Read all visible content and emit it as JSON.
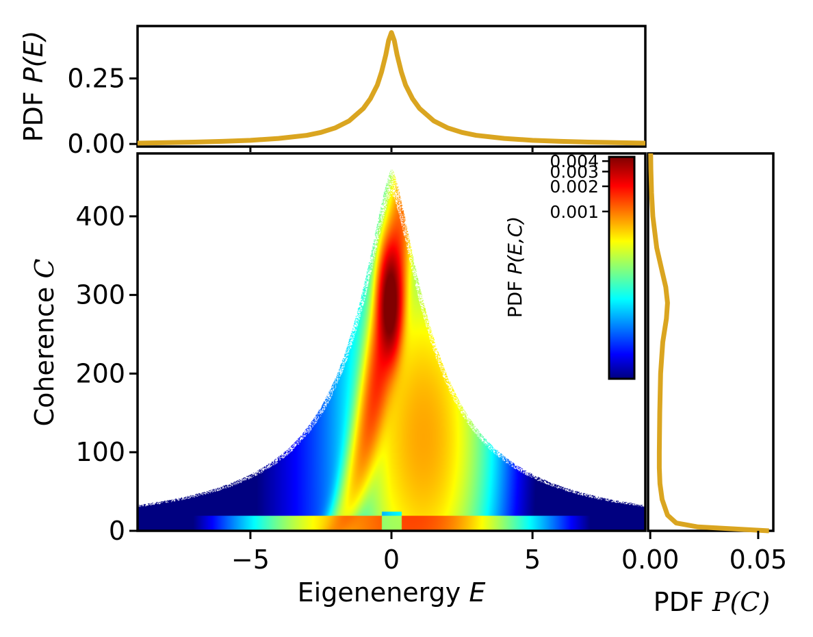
{
  "colors": {
    "curve": "#DAA520",
    "axis": "#000000",
    "background": "#ffffff"
  },
  "chart_data": [
    {
      "id": "top",
      "type": "line",
      "ylabel_prefix": "PDF ",
      "ylabel_var": "P(E)",
      "xlim": [
        -9,
        9
      ],
      "ylim": [
        -0.01,
        0.45
      ],
      "yticks": [
        0.0,
        0.25
      ],
      "ytick_labels": [
        "0.00",
        "0.25"
      ],
      "xticks": [
        -5,
        0,
        5
      ],
      "series": [
        {
          "name": "P(E)",
          "x": [
            -9,
            -8,
            -7,
            -6,
            -5,
            -4,
            -3,
            -2.5,
            -2,
            -1.5,
            -1,
            -0.75,
            -0.5,
            -0.35,
            -0.2,
            -0.1,
            0,
            0.1,
            0.2,
            0.35,
            0.5,
            0.75,
            1,
            1.5,
            2,
            2.5,
            3,
            4,
            5,
            6,
            7,
            8,
            9
          ],
          "y": [
            0.003,
            0.005,
            0.007,
            0.01,
            0.014,
            0.021,
            0.033,
            0.044,
            0.061,
            0.088,
            0.135,
            0.172,
            0.225,
            0.275,
            0.34,
            0.395,
            0.425,
            0.395,
            0.34,
            0.275,
            0.225,
            0.172,
            0.135,
            0.088,
            0.061,
            0.044,
            0.033,
            0.021,
            0.014,
            0.01,
            0.007,
            0.005,
            0.003
          ]
        }
      ]
    },
    {
      "id": "main",
      "type": "heatmap",
      "xlabel_text": "Eigenenergy ",
      "xlabel_var": "E",
      "ylabel_text": "Coherence ",
      "ylabel_var": "C",
      "xlim": [
        -9,
        9
      ],
      "ylim": [
        0,
        480
      ],
      "xticks": [
        -5,
        0,
        5
      ],
      "xtick_labels": [
        "−5",
        "0",
        "5"
      ],
      "yticks": [
        0,
        100,
        200,
        300,
        400
      ],
      "ytick_labels": [
        "0",
        "100",
        "200",
        "300",
        "400"
      ],
      "colorbar": {
        "title_prefix": "PDF ",
        "title_var": "P(E,C)",
        "colormap": "jet",
        "scale": "log",
        "range": [
          1e-05,
          0.0045
        ],
        "ticks": [
          0.001,
          0.002,
          0.003,
          0.004
        ],
        "tick_labels": [
          "0.001",
          "0.002",
          "0.003",
          "0.004"
        ]
      },
      "density_model": {
        "peak": {
          "E": -0.05,
          "C": 290,
          "value": 0.0044
        },
        "ridge": "bright ridge from (E=-2, C=5) through (E=0, C=300) to (E=0.3, C=450)",
        "envelope": "C_max(E) ~ 460 / (1 + 0.48 |E|^1.5)"
      }
    },
    {
      "id": "right",
      "type": "line",
      "xlabel_prefix": "PDF ",
      "xlabel_var": "P(C)",
      "xlim": [
        -0.001,
        0.057
      ],
      "ylim": [
        0,
        480
      ],
      "xticks": [
        0.0,
        0.05
      ],
      "xtick_labels": [
        "0.00",
        "0.05"
      ],
      "series": [
        {
          "name": "P(C)",
          "C": [
            0,
            5,
            10,
            20,
            40,
            60,
            80,
            100,
            150,
            200,
            240,
            270,
            290,
            310,
            330,
            360,
            400,
            430,
            460,
            480
          ],
          "p": [
            0.055,
            0.022,
            0.012,
            0.008,
            0.0055,
            0.0045,
            0.0042,
            0.0042,
            0.0044,
            0.0048,
            0.0058,
            0.0075,
            0.008,
            0.0072,
            0.0055,
            0.003,
            0.0012,
            0.0006,
            0.0003,
            0.0002
          ]
        }
      ]
    }
  ]
}
